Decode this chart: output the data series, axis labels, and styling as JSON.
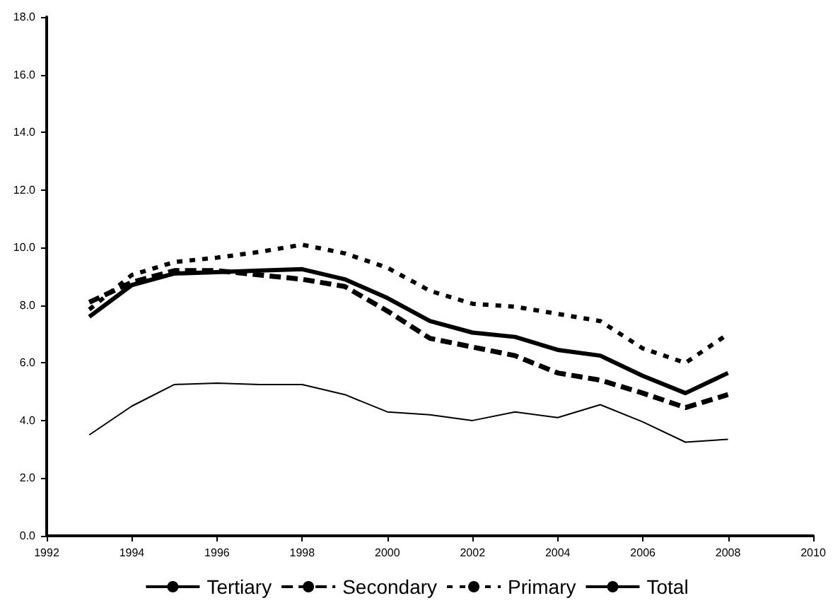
{
  "chart_data": {
    "type": "line",
    "x": [
      1993,
      1994,
      1995,
      1996,
      1997,
      1998,
      1999,
      2000,
      2001,
      2002,
      2003,
      2004,
      2005,
      2006,
      2007,
      2008
    ],
    "series": [
      {
        "name": "Tertiary",
        "color": "#000000",
        "line_style": "solid",
        "values": [
          3.5,
          4.5,
          5.25,
          5.3,
          5.25,
          5.25,
          4.9,
          4.3,
          4.2,
          4.0,
          4.3,
          4.1,
          4.55,
          3.95,
          3.25,
          3.35
        ]
      },
      {
        "name": "Secondary",
        "color": "#000000",
        "line_style": "dashed",
        "values": [
          8.1,
          8.8,
          9.2,
          9.2,
          9.05,
          8.9,
          8.65,
          7.8,
          6.85,
          6.55,
          6.25,
          5.65,
          5.4,
          4.95,
          4.45,
          4.9
        ]
      },
      {
        "name": "Primary",
        "color": "#000000",
        "line_style": "dotted",
        "values": [
          7.85,
          9.05,
          9.5,
          9.65,
          9.85,
          10.1,
          9.8,
          9.3,
          8.5,
          8.05,
          7.95,
          7.7,
          7.45,
          6.5,
          6.0,
          7.0
        ]
      },
      {
        "name": "Total",
        "color": "#000000",
        "line_style": "solid",
        "values": [
          7.6,
          8.7,
          9.1,
          9.15,
          9.2,
          9.25,
          8.9,
          8.25,
          7.45,
          7.05,
          6.9,
          6.45,
          6.25,
          5.55,
          4.95,
          5.65
        ]
      }
    ],
    "xlim": [
      1992,
      2010
    ],
    "xticks": [
      1992,
      1994,
      1996,
      1998,
      2000,
      2002,
      2004,
      2006,
      2008,
      2010
    ],
    "ylim": [
      0,
      18
    ],
    "yticks": [
      {
        "value": 0,
        "label": "0.0"
      },
      {
        "value": 2,
        "label": "2.0"
      },
      {
        "value": 4,
        "label": "4.0"
      },
      {
        "value": 6,
        "label": "6.0"
      },
      {
        "value": 8,
        "label": "8.0"
      },
      {
        "value": 10,
        "label": "10.0"
      },
      {
        "value": 12,
        "label": "12.0"
      },
      {
        "value": 14,
        "label": "14.0"
      },
      {
        "value": 16,
        "label": "16.0"
      },
      {
        "value": 18,
        "label": "18.0"
      }
    ],
    "grid": false,
    "legend": "bottom",
    "marker": "none"
  }
}
